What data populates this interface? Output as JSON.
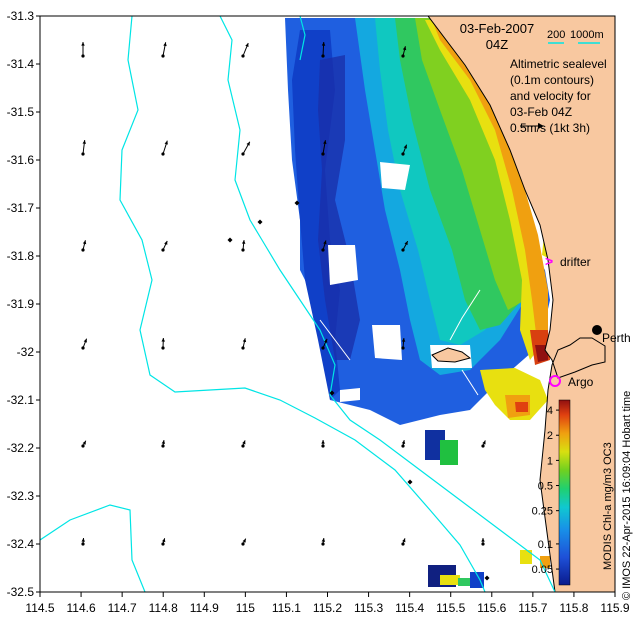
{
  "header": {
    "date": "03-Feb-2007",
    "time": "04Z",
    "bathy_contours": [
      "200",
      "1000m"
    ]
  },
  "legend_text": {
    "line1": "Altimetric sealevel",
    "line2": "(0.1m contours)",
    "line3": "and velocity for",
    "line4": "03-Feb 04Z",
    "line5": "0.5m/s (1kt 3h)"
  },
  "places": {
    "drifter": "drifter",
    "perth": "Perth",
    "argo": "Argo"
  },
  "axes": {
    "x_ticks": [
      "114.5",
      "114.6",
      "114.7",
      "114.8",
      "114.9",
      "115",
      "115.1",
      "115.2",
      "115.3",
      "115.4",
      "115.5",
      "115.6",
      "115.7",
      "115.8",
      "115.9"
    ],
    "y_ticks": [
      "-31.3",
      "-31.4",
      "-31.5",
      "-31.6",
      "-31.7",
      "-31.8",
      "-31.9",
      "-32",
      "-32.1",
      "-32.2",
      "-32.3",
      "-32.4",
      "-32.5"
    ],
    "xlim": [
      114.5,
      115.9
    ],
    "ylim": [
      -32.5,
      -31.3
    ]
  },
  "colorbar": {
    "ticks": [
      "4",
      "2",
      "1",
      "0.5",
      "0.25",
      "0.1",
      "0.05"
    ],
    "label": "MODIS Chl-a mg/m3 OC3",
    "scale": "log"
  },
  "credit": "© IMOS 22-Apr-2015 16:09:04 Hobart time",
  "colors": {
    "land": "#f8c8a0",
    "isobath": "#00e5e5",
    "drifter_marker": "#ff00ff",
    "argo_marker": "#ff00ff"
  }
}
